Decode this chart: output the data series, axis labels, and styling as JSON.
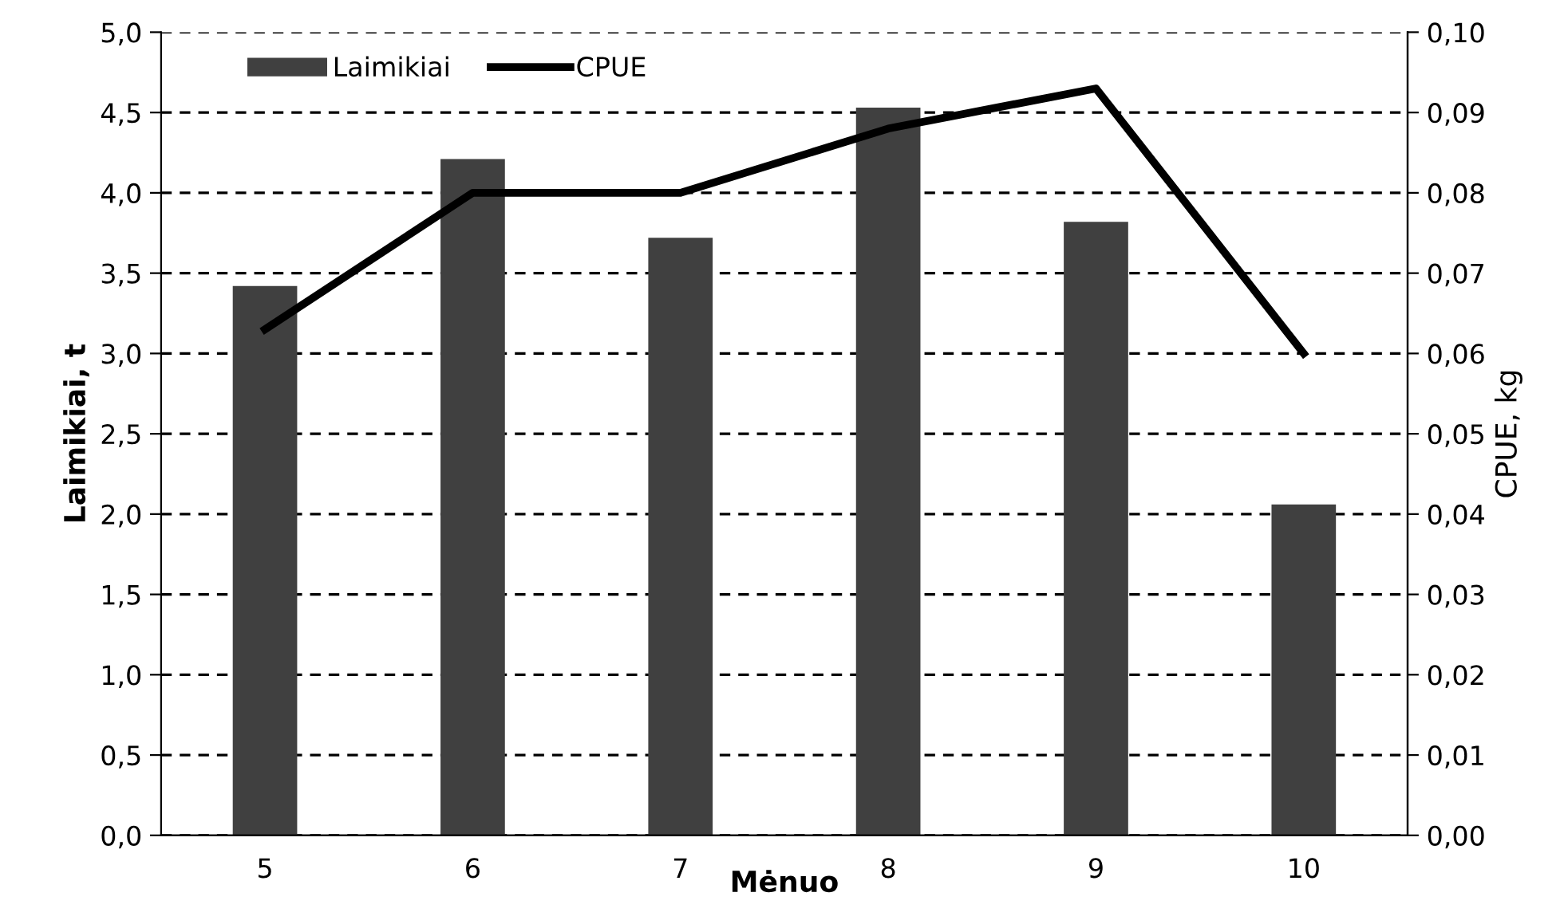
{
  "chart_data": {
    "type": "bar",
    "xlabel": "Mėnuo",
    "ylabel": "Laimikiai, t",
    "y2label": "CPUE, kg",
    "categories": [
      "5",
      "6",
      "7",
      "8",
      "9",
      "10"
    ],
    "series": [
      {
        "name": "Laimikiai",
        "color": "#404040",
        "values": [
          3.42,
          4.21,
          3.72,
          4.53,
          3.82,
          2.06
        ]
      },
      {
        "name": "CPUE",
        "type": "line",
        "color": "#000000",
        "axis": "y2",
        "values": [
          0.063,
          0.08,
          0.08,
          0.088,
          0.093,
          0.06
        ]
      }
    ],
    "ylim": [
      0,
      5
    ],
    "yticks": [
      {
        "value": 0,
        "label": "0,0"
      },
      {
        "value": 0.5,
        "label": "0,5"
      },
      {
        "value": 1,
        "label": "1,0"
      },
      {
        "value": 1.5,
        "label": "1,5"
      },
      {
        "value": 2,
        "label": "2,0"
      },
      {
        "value": 2.5,
        "label": "2,5"
      },
      {
        "value": 3,
        "label": "3,0"
      },
      {
        "value": 3.5,
        "label": "3,5"
      },
      {
        "value": 4,
        "label": "4,0"
      },
      {
        "value": 4.5,
        "label": "4,5"
      },
      {
        "value": 5,
        "label": "5,0"
      }
    ],
    "y2lim": [
      0,
      0.1
    ],
    "y2ticks": [
      {
        "value": 0,
        "label": "0,00"
      },
      {
        "value": 0.01,
        "label": "0,01"
      },
      {
        "value": 0.02,
        "label": "0,02"
      },
      {
        "value": 0.03,
        "label": "0,03"
      },
      {
        "value": 0.04,
        "label": "0,04"
      },
      {
        "value": 0.05,
        "label": "0,05"
      },
      {
        "value": 0.06,
        "label": "0,06"
      },
      {
        "value": 0.07,
        "label": "0,07"
      },
      {
        "value": 0.08,
        "label": "0,08"
      },
      {
        "value": 0.09,
        "label": "0,09"
      },
      {
        "value": 0.1,
        "label": "0,10"
      }
    ],
    "grid": "y",
    "legend": "top left",
    "marker": "none",
    "line_style": "solid"
  }
}
